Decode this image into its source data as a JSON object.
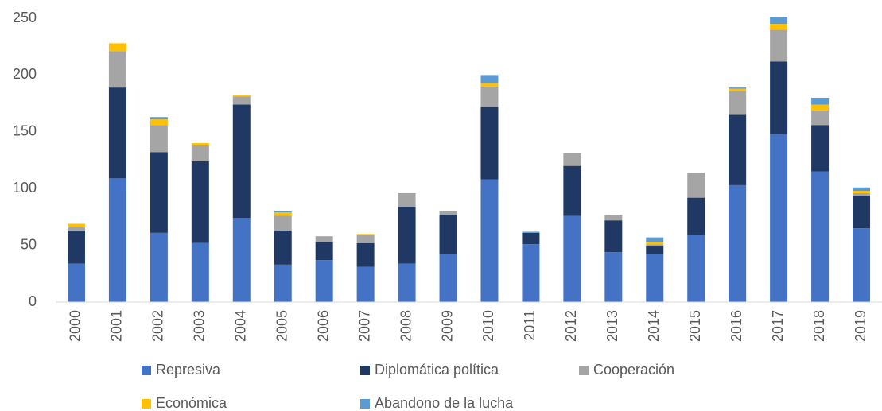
{
  "chart_data": {
    "type": "stacked_bar",
    "categories": [
      "2000",
      "2001",
      "2002",
      "2003",
      "2004",
      "2005",
      "2006",
      "2007",
      "2008",
      "2009",
      "2010",
      "2011",
      "2012",
      "2013",
      "2014",
      "2015",
      "2016",
      "2017",
      "2018",
      "2019"
    ],
    "series": [
      {
        "name": "Represiva",
        "color": "#4472c4",
        "values": [
          34,
          109,
          61,
          52,
          74,
          33,
          37,
          31,
          34,
          42,
          108,
          51,
          76,
          44,
          42,
          59,
          103,
          148,
          115,
          65
        ]
      },
      {
        "name": "Diplomática política",
        "color": "#203864",
        "values": [
          29,
          80,
          71,
          72,
          100,
          30,
          16,
          21,
          50,
          35,
          64,
          10,
          44,
          28,
          7,
          33,
          62,
          64,
          41,
          29
        ]
      },
      {
        "name": "Cooperación",
        "color": "#a5a5a5",
        "values": [
          3,
          32,
          24,
          14,
          7,
          13,
          5,
          7,
          12,
          3,
          18,
          0,
          11,
          5,
          2,
          22,
          21,
          28,
          13,
          2
        ]
      },
      {
        "name": "Económica",
        "color": "#ffc000",
        "values": [
          3,
          7,
          5,
          2,
          1,
          3,
          0,
          1,
          0,
          0,
          3,
          0,
          0,
          0,
          2,
          0,
          2,
          5,
          5,
          2
        ]
      },
      {
        "name": "Abandono de la lucha",
        "color": "#5b9bd5",
        "values": [
          0,
          0,
          2,
          0,
          0,
          1,
          0,
          0,
          0,
          0,
          7,
          1,
          0,
          0,
          4,
          0,
          1,
          6,
          6,
          3
        ]
      }
    ],
    "ylim": [
      0,
      250
    ],
    "yticks": [
      0,
      50,
      100,
      150,
      200,
      250
    ],
    "grid": false
  }
}
